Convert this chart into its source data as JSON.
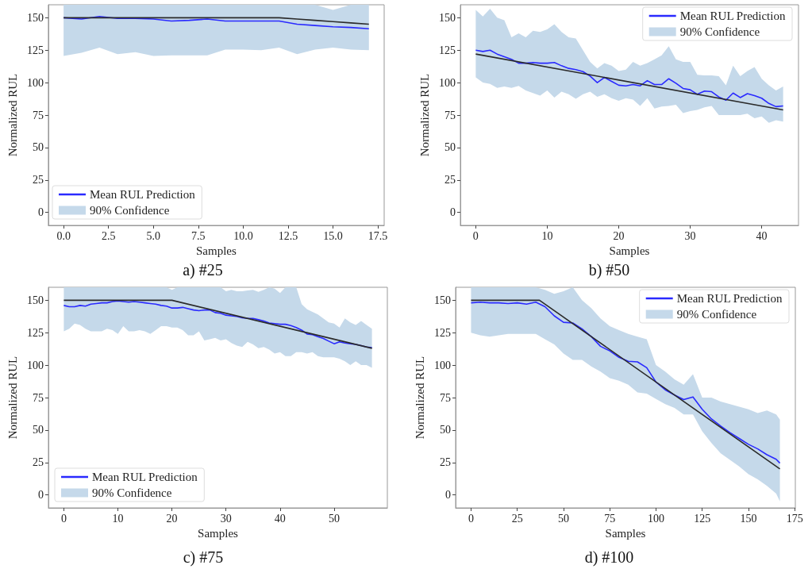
{
  "chart_data": [
    {
      "type": "line",
      "title": "a) #25",
      "xlabel": "Samples",
      "ylabel": "Normalized RUL",
      "legend": "bottom left",
      "xlim": [
        -0.85,
        17.85
      ],
      "ylim": [
        -10,
        160
      ],
      "xticks": [
        {
          "value": 0,
          "label": "0.0"
        },
        2.5,
        {
          "value": 5,
          "label": "5.0"
        },
        7.5,
        {
          "value": 10,
          "label": "10.0"
        },
        12.5,
        {
          "value": 15,
          "label": "15.0"
        },
        17.5
      ],
      "yticks": [
        0,
        25,
        50,
        75,
        100,
        125,
        150
      ],
      "x": [
        0,
        1,
        2,
        3,
        4,
        5,
        6,
        7,
        8,
        9,
        10,
        11,
        12,
        13,
        14,
        15,
        16,
        17
      ],
      "series": [
        {
          "name": "Mean RUL Prediction",
          "color": "#2a2aff",
          "values": [
            150,
            149,
            151,
            149.5,
            149.5,
            149,
            147.5,
            148,
            149,
            147.5,
            147.5,
            147.5,
            147.5,
            145,
            144,
            143,
            142.5,
            141.5
          ]
        },
        {
          "name": "90% Confidence",
          "type": "area",
          "color": "#c5d9ea",
          "values": [
            null,
            null,
            null,
            null,
            null,
            null,
            null,
            null,
            null,
            null,
            null,
            null,
            null,
            null,
            null,
            null,
            null,
            null
          ],
          "lower": [
            120.5,
            123,
            127,
            122,
            123.5,
            120.5,
            121,
            121,
            121,
            125.5,
            125.5,
            125,
            127,
            122,
            125.5,
            127,
            125.5,
            125
          ],
          "upper": [
            160,
            160,
            160,
            160,
            160,
            160,
            160,
            160,
            160,
            160,
            160,
            160,
            160,
            160,
            160,
            156,
            160,
            160
          ]
        },
        {
          "color": "#2b2b2b",
          "values": [
            150,
            150,
            150,
            150,
            150,
            150,
            150,
            150,
            150,
            150,
            150,
            150,
            150,
            149,
            148,
            147,
            146,
            145
          ]
        }
      ]
    },
    {
      "type": "line",
      "title": "b) #50",
      "xlabel": "Samples",
      "ylabel": "Normalized RUL",
      "legend": "top right",
      "xlim": [
        -2.15,
        45.15
      ],
      "ylim": [
        -10,
        160
      ],
      "xticks": [
        0,
        10,
        20,
        30,
        40
      ],
      "yticks": [
        0,
        25,
        50,
        75,
        100,
        125,
        150
      ],
      "x": [
        0,
        1,
        2,
        3,
        4,
        5,
        6,
        7,
        8,
        9,
        10,
        11,
        12,
        13,
        14,
        15,
        16,
        17,
        18,
        19,
        20,
        21,
        22,
        23,
        24,
        25,
        26,
        27,
        28,
        29,
        30,
        31,
        32,
        33,
        34,
        35,
        36,
        37,
        38,
        39,
        40,
        41,
        42,
        43
      ],
      "series": [
        {
          "name": "Mean RUL Prediction",
          "color": "#2a2aff",
          "values": [
            125,
            124,
            125,
            122,
            120,
            118,
            115,
            115,
            115.5,
            115,
            115,
            115.5,
            113,
            111,
            110,
            108.5,
            105,
            100,
            104,
            101,
            98,
            97.5,
            98.5,
            97.5,
            101.5,
            98.5,
            98.5,
            103,
            99.5,
            95.5,
            94.5,
            91,
            93.5,
            93,
            89,
            86.5,
            92,
            88.5,
            91.5,
            90,
            88,
            84,
            81.5,
            82
          ]
        },
        {
          "name": "90% Confidence",
          "type": "area",
          "color": "#c5d9ea",
          "values": [
            null,
            null,
            null,
            null,
            null,
            null,
            null,
            null,
            null,
            null,
            null,
            null,
            null,
            null,
            null,
            null,
            null,
            null,
            null,
            null,
            null,
            null,
            null,
            null,
            null,
            null,
            null,
            null,
            null,
            null,
            null,
            null,
            null,
            null,
            null,
            null,
            null,
            null,
            null,
            null,
            null,
            null,
            null,
            null
          ],
          "lower": [
            104,
            100,
            99,
            96,
            97,
            96,
            97.5,
            94,
            92,
            90,
            94,
            88.5,
            93,
            91,
            87.5,
            91,
            93,
            89,
            91,
            88,
            86,
            88,
            87,
            82,
            88,
            80,
            81.5,
            82,
            83,
            76.5,
            78,
            79,
            81,
            82,
            75,
            75,
            75,
            75,
            76,
            72.5,
            74,
            69,
            71,
            70
          ],
          "upper": [
            156,
            151,
            157,
            150,
            148,
            135,
            138,
            135,
            140,
            139,
            141,
            145,
            139,
            135,
            134,
            125,
            116,
            111,
            115,
            113,
            109,
            110,
            116,
            113,
            115,
            118,
            121,
            128,
            118,
            116,
            116,
            106,
            105.5,
            105.5,
            105,
            98,
            113,
            105,
            109,
            112,
            103,
            98,
            94,
            97
          ]
        },
        {
          "color": "#2b2b2b",
          "x": [
            0,
            43
          ],
          "values": [
            122,
            79
          ]
        }
      ]
    },
    {
      "type": "line",
      "title": "c) #75",
      "xlabel": "Samples",
      "ylabel": "Normalized RUL",
      "legend": "bottom left",
      "xlim": [
        -2.85,
        59.85
      ],
      "ylim": [
        -10,
        160
      ],
      "xticks": [
        0,
        10,
        20,
        30,
        40,
        50
      ],
      "yticks": [
        0,
        25,
        50,
        75,
        100,
        125,
        150
      ],
      "x": [
        0,
        1,
        2,
        3,
        4,
        5,
        6,
        7,
        8,
        9,
        10,
        11,
        12,
        13,
        14,
        15,
        16,
        17,
        18,
        19,
        20,
        21,
        22,
        23,
        24,
        25,
        26,
        27,
        28,
        29,
        30,
        31,
        32,
        33,
        34,
        35,
        36,
        37,
        38,
        39,
        40,
        41,
        42,
        43,
        44,
        45,
        46,
        47,
        48,
        49,
        50,
        51,
        52,
        53,
        54,
        55,
        56,
        57
      ],
      "series": [
        {
          "name": "Mean RUL Prediction",
          "color": "#2a2aff",
          "values": [
            146,
            145,
            145,
            146,
            145.5,
            147,
            147.5,
            148,
            148,
            149,
            149.5,
            149,
            148.5,
            149,
            148.5,
            148,
            147.5,
            147,
            146,
            145.5,
            144,
            144,
            144.5,
            143.5,
            142.5,
            142,
            142.5,
            142.5,
            140.5,
            140,
            138.5,
            138,
            137.5,
            136.5,
            136,
            136,
            135,
            134,
            132.5,
            132,
            131.5,
            131.5,
            130.5,
            129,
            127,
            124,
            123.5,
            122,
            120.5,
            118.5,
            116.5,
            118,
            117,
            116.5,
            116,
            115,
            114,
            113.5
          ]
        },
        {
          "name": "90% Confidence",
          "type": "area",
          "color": "#c5d9ea",
          "values": [
            null,
            null,
            null,
            null,
            null,
            null,
            null,
            null,
            null,
            null,
            null,
            null,
            null,
            null,
            null,
            null,
            null,
            null,
            null,
            null,
            null,
            null,
            null,
            null,
            null,
            null,
            null,
            null,
            null,
            null,
            null,
            null,
            null,
            null,
            null,
            null,
            null,
            null,
            null,
            null,
            null,
            null,
            null,
            null,
            null,
            null,
            null,
            null,
            null,
            null,
            null,
            null,
            null,
            null,
            null,
            null,
            null,
            null
          ],
          "lower": [
            126,
            128,
            132,
            131,
            128,
            126,
            126,
            126,
            128,
            127,
            124,
            130,
            126,
            126,
            127,
            126,
            124,
            127,
            130,
            130,
            129,
            129,
            127,
            123,
            123,
            126,
            119,
            120,
            121,
            119,
            120,
            117,
            115,
            114,
            118,
            116,
            113,
            114,
            112,
            109,
            110,
            107,
            107,
            110,
            110,
            109,
            110,
            107,
            106,
            106,
            106,
            105,
            103,
            100,
            103,
            100,
            100,
            98
          ],
          "upper": [
            160,
            160,
            160,
            160,
            160,
            160,
            160,
            160,
            160,
            160,
            160,
            160,
            160,
            160,
            160,
            160,
            160,
            160,
            160,
            160,
            158,
            160,
            160,
            160,
            160,
            160,
            160,
            160,
            160,
            160,
            157,
            158,
            157,
            157,
            157.5,
            158,
            156.5,
            158,
            160,
            159,
            155.5,
            160,
            160,
            160,
            147,
            143,
            141,
            139,
            136,
            133,
            132,
            129,
            136,
            133,
            131,
            134,
            131,
            128
          ]
        },
        {
          "color": "#2b2b2b",
          "x": [
            0,
            20,
            57
          ],
          "values": [
            150,
            150,
            113
          ]
        }
      ]
    },
    {
      "type": "line",
      "title": "d) #100",
      "xlabel": "Samples",
      "ylabel": "Normalized RUL",
      "legend": "top right",
      "xlim": [
        -8.35,
        175.35
      ],
      "ylim": [
        -10,
        160
      ],
      "xticks": [
        0,
        25,
        50,
        75,
        100,
        125,
        150,
        175
      ],
      "yticks": [
        0,
        25,
        50,
        75,
        100,
        125,
        150
      ],
      "x": [
        0,
        5,
        10,
        15,
        20,
        25,
        30,
        35,
        40,
        45,
        50,
        55,
        60,
        65,
        70,
        75,
        80,
        85,
        90,
        95,
        100,
        105,
        110,
        115,
        120,
        125,
        130,
        135,
        140,
        145,
        150,
        155,
        160,
        165,
        167
      ],
      "series": [
        {
          "name": "Mean RUL Prediction",
          "color": "#2a2aff",
          "values": [
            148,
            148.5,
            148,
            148,
            147.5,
            148,
            147,
            148.5,
            145,
            138,
            133,
            132.5,
            128,
            122,
            114.5,
            111,
            106,
            103,
            102.5,
            98,
            87,
            81,
            77,
            73.5,
            75.5,
            66,
            58.5,
            53,
            48,
            43.5,
            39,
            35.5,
            31,
            27.5,
            24.5
          ]
        },
        {
          "name": "90% Confidence",
          "type": "area",
          "color": "#c5d9ea",
          "values": [
            null,
            null,
            null,
            null,
            null,
            null,
            null,
            null,
            null,
            null,
            null,
            null,
            null,
            null,
            null,
            null,
            null,
            null,
            null,
            null,
            null,
            null,
            null,
            null,
            null,
            null,
            null,
            null,
            null,
            null,
            null,
            null,
            null,
            null,
            null
          ],
          "lower": [
            125,
            123,
            122,
            123,
            124,
            124,
            124,
            124,
            120,
            116,
            109,
            104,
            104,
            99,
            95,
            90,
            88,
            85,
            79,
            78,
            74,
            70,
            67,
            62,
            62,
            49,
            40,
            32,
            27,
            22,
            16,
            12,
            7,
            1,
            -5
          ],
          "upper": [
            160,
            160,
            160,
            160,
            160,
            160,
            160,
            160,
            158,
            155,
            157,
            160,
            150,
            144,
            136,
            130,
            127,
            124,
            122,
            120,
            100,
            95,
            89,
            85,
            93,
            75,
            75,
            72,
            70,
            68,
            66,
            63,
            65,
            62,
            58
          ]
        },
        {
          "color": "#2b2b2b",
          "x": [
            0,
            37,
            167
          ],
          "values": [
            150,
            150,
            20
          ]
        }
      ]
    }
  ]
}
